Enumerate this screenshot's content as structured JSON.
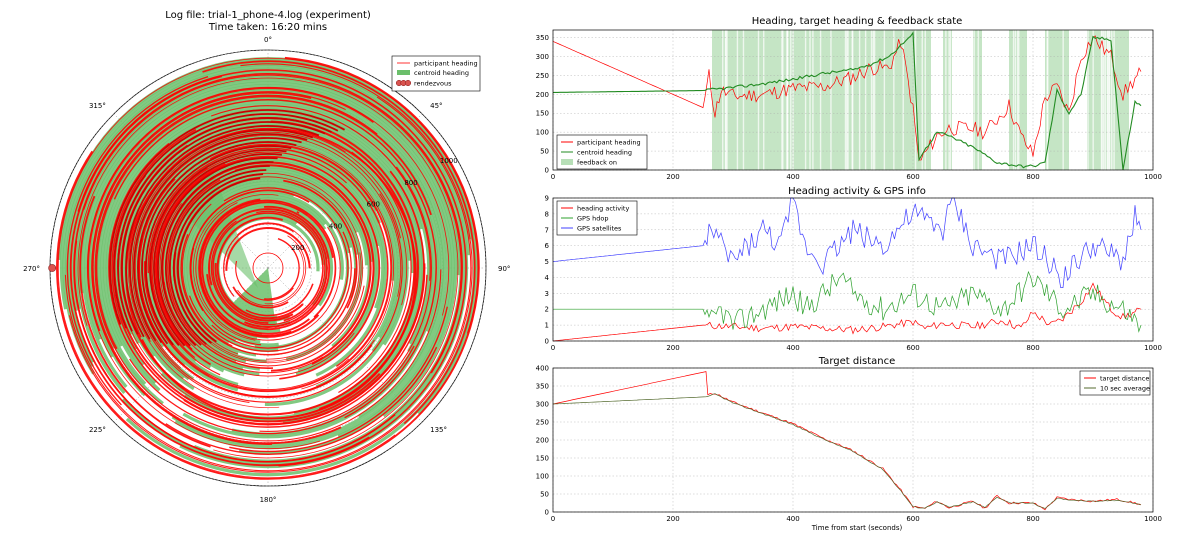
{
  "polar": {
    "title_line1": "Log file: trial-1_phone-4.log (experiment)",
    "title_line2": "Time taken: 16:20 mins",
    "angle_labels": [
      "0°",
      "45°",
      "90°",
      "135°",
      "180°",
      "225°",
      "270°",
      "315°"
    ],
    "radial_labels": [
      "200",
      "400",
      "600",
      "800",
      "1000"
    ],
    "legend": [
      "participant heading",
      "centroid heading",
      "rendezvous"
    ],
    "colors": {
      "participant": "#ff0000",
      "centroid": "#6bbf6b",
      "rendezvous": "#d9534f"
    }
  },
  "panel1": {
    "title": "Heading, target heading & feedback state",
    "y_ticks": [
      "0",
      "50",
      "100",
      "150",
      "200",
      "250",
      "300",
      "350"
    ],
    "x_ticks": [
      "0",
      "200",
      "400",
      "600",
      "800",
      "1000"
    ],
    "legend": [
      "participant heading",
      "centroid heading",
      "feedback on"
    ]
  },
  "panel2": {
    "title": "Heading activity & GPS info",
    "y_ticks": [
      "0",
      "1",
      "2",
      "3",
      "4",
      "5",
      "6",
      "7",
      "8",
      "9"
    ],
    "x_ticks": [
      "0",
      "200",
      "400",
      "600",
      "800",
      "1000"
    ],
    "legend": [
      "heading activity",
      "GPS hdop",
      "GPS satellites"
    ]
  },
  "panel3": {
    "title": "Target distance",
    "y_ticks": [
      "0",
      "50",
      "100",
      "150",
      "200",
      "250",
      "300",
      "350",
      "400"
    ],
    "x_ticks": [
      "0",
      "200",
      "400",
      "600",
      "800",
      "1000"
    ],
    "xlabel": "Time from start (seconds)",
    "legend": [
      "target distance",
      "10 sec average"
    ]
  },
  "chart_data": [
    {
      "type": "line",
      "title": "Log file: trial-1_phone-4.log (experiment) / Time taken: 16:20 mins",
      "coords": "polar",
      "theta_labels_deg": [
        0,
        45,
        90,
        135,
        180,
        225,
        270,
        315
      ],
      "r_ticks": [
        200,
        400,
        600,
        800,
        1000
      ],
      "r_range": [
        0,
        1000
      ],
      "series": [
        {
          "name": "participant heading",
          "color": "#ff0000"
        },
        {
          "name": "centroid heading",
          "color": "#6bbf6b"
        },
        {
          "name": "rendezvous",
          "color": "#d9534f",
          "points": [
            {
              "theta_deg": 270,
              "r": 990
            }
          ]
        }
      ]
    },
    {
      "type": "line",
      "title": "Heading, target heading & feedback state",
      "xlim": [
        0,
        1000
      ],
      "ylim": [
        0,
        370
      ],
      "series": [
        {
          "name": "participant heading",
          "color": "#ff0000",
          "points": [
            [
              0,
              340
            ],
            [
              250,
              165
            ],
            [
              260,
              250
            ],
            [
              270,
              150
            ],
            [
              280,
              210
            ],
            [
              300,
              195
            ],
            [
              350,
              200
            ],
            [
              400,
              215
            ],
            [
              450,
              220
            ],
            [
              500,
              245
            ],
            [
              530,
              270
            ],
            [
              560,
              270
            ],
            [
              580,
              340
            ],
            [
              600,
              160
            ],
            [
              610,
              20
            ],
            [
              640,
              90
            ],
            [
              660,
              110
            ],
            [
              700,
              110
            ],
            [
              720,
              100
            ],
            [
              760,
              170
            ],
            [
              780,
              90
            ],
            [
              800,
              40
            ],
            [
              820,
              190
            ],
            [
              840,
              220
            ],
            [
              860,
              150
            ],
            [
              880,
              300
            ],
            [
              900,
              350
            ],
            [
              930,
              300
            ],
            [
              950,
              200
            ],
            [
              970,
              240
            ],
            [
              980,
              260
            ]
          ]
        },
        {
          "name": "centroid heading",
          "color": "#228b22",
          "points": [
            [
              0,
              205
            ],
            [
              250,
              210
            ],
            [
              300,
              218
            ],
            [
              350,
              228
            ],
            [
              400,
              240
            ],
            [
              450,
              255
            ],
            [
              500,
              265
            ],
            [
              530,
              280
            ],
            [
              560,
              300
            ],
            [
              580,
              330
            ],
            [
              600,
              360
            ],
            [
              610,
              30
            ],
            [
              640,
              100
            ],
            [
              660,
              90
            ],
            [
              700,
              60
            ],
            [
              740,
              20
            ],
            [
              780,
              10
            ],
            [
              800,
              10
            ],
            [
              820,
              20
            ],
            [
              840,
              210
            ],
            [
              860,
              150
            ],
            [
              880,
              200
            ],
            [
              900,
              350
            ],
            [
              930,
              345
            ],
            [
              950,
              0
            ],
            [
              970,
              180
            ],
            [
              980,
              170
            ]
          ]
        },
        {
          "name": "feedback on",
          "color": "#b7dfb7",
          "spans": [
            [
              265,
              630
            ],
            [
              650,
              665
            ],
            [
              700,
              715
            ],
            [
              760,
              790
            ],
            [
              820,
              860
            ],
            [
              890,
              960
            ]
          ]
        }
      ]
    },
    {
      "type": "line",
      "title": "Heading activity & GPS info",
      "xlim": [
        0,
        1000
      ],
      "ylim": [
        0,
        9
      ],
      "series": [
        {
          "name": "heading activity",
          "color": "#ff0000",
          "points": [
            [
              0,
              0
            ],
            [
              250,
              1
            ],
            [
              300,
              0.9
            ],
            [
              350,
              0.8
            ],
            [
              400,
              0.9
            ],
            [
              450,
              0.8
            ],
            [
              500,
              0.7
            ],
            [
              550,
              0.9
            ],
            [
              600,
              1.2
            ],
            [
              620,
              0.8
            ],
            [
              650,
              1.1
            ],
            [
              700,
              0.9
            ],
            [
              750,
              1.3
            ],
            [
              780,
              0.8
            ],
            [
              800,
              1.8
            ],
            [
              830,
              1.0
            ],
            [
              850,
              1.4
            ],
            [
              880,
              2.5
            ],
            [
              900,
              3.5
            ],
            [
              930,
              2.0
            ],
            [
              950,
              1.5
            ],
            [
              970,
              1.8
            ],
            [
              980,
              2.0
            ]
          ]
        },
        {
          "name": "GPS hdop",
          "color": "#2ca02c",
          "points": [
            [
              0,
              2
            ],
            [
              250,
              2
            ],
            [
              260,
              1
            ],
            [
              280,
              2
            ],
            [
              300,
              1
            ],
            [
              350,
              2
            ],
            [
              400,
              3
            ],
            [
              420,
              2
            ],
            [
              450,
              3
            ],
            [
              480,
              4
            ],
            [
              500,
              3
            ],
            [
              550,
              2
            ],
            [
              600,
              3
            ],
            [
              650,
              2
            ],
            [
              700,
              3
            ],
            [
              750,
              2
            ],
            [
              800,
              4
            ],
            [
              850,
              2
            ],
            [
              900,
              3
            ],
            [
              950,
              2
            ],
            [
              980,
              1
            ]
          ]
        },
        {
          "name": "GPS satellites",
          "color": "#4040ff",
          "points": [
            [
              0,
              5
            ],
            [
              250,
              6
            ],
            [
              260,
              7
            ],
            [
              280,
              6
            ],
            [
              300,
              5
            ],
            [
              350,
              7
            ],
            [
              380,
              6
            ],
            [
              400,
              9
            ],
            [
              420,
              6
            ],
            [
              450,
              5
            ],
            [
              500,
              7
            ],
            [
              550,
              6
            ],
            [
              600,
              8
            ],
            [
              650,
              7
            ],
            [
              665,
              9
            ],
            [
              700,
              6
            ],
            [
              750,
              5
            ],
            [
              800,
              6
            ],
            [
              850,
              4
            ],
            [
              900,
              6
            ],
            [
              950,
              5
            ],
            [
              970,
              8
            ],
            [
              980,
              7
            ]
          ]
        }
      ]
    },
    {
      "type": "line",
      "title": "Target distance",
      "xlabel": "Time from start (seconds)",
      "xlim": [
        0,
        1000
      ],
      "ylim": [
        0,
        400
      ],
      "series": [
        {
          "name": "target distance",
          "color": "#ff0000",
          "points": [
            [
              0,
              300
            ],
            [
              255,
              390
            ],
            [
              258,
              325
            ],
            [
              270,
              330
            ],
            [
              300,
              305
            ],
            [
              350,
              275
            ],
            [
              400,
              245
            ],
            [
              450,
              205
            ],
            [
              500,
              170
            ],
            [
              550,
              120
            ],
            [
              580,
              60
            ],
            [
              600,
              15
            ],
            [
              620,
              10
            ],
            [
              640,
              30
            ],
            [
              660,
              12
            ],
            [
              700,
              30
            ],
            [
              720,
              10
            ],
            [
              740,
              45
            ],
            [
              760,
              25
            ],
            [
              800,
              25
            ],
            [
              820,
              8
            ],
            [
              840,
              40
            ],
            [
              860,
              35
            ],
            [
              900,
              30
            ],
            [
              940,
              35
            ],
            [
              970,
              25
            ],
            [
              980,
              20
            ]
          ]
        },
        {
          "name": "10 sec average",
          "color": "#556b2f",
          "points": [
            [
              0,
              300
            ],
            [
              255,
              320
            ],
            [
              258,
              320
            ],
            [
              270,
              328
            ],
            [
              300,
              303
            ],
            [
              350,
              273
            ],
            [
              400,
              243
            ],
            [
              450,
              203
            ],
            [
              500,
              168
            ],
            [
              550,
              118
            ],
            [
              580,
              58
            ],
            [
              600,
              14
            ],
            [
              620,
              11
            ],
            [
              640,
              28
            ],
            [
              660,
              13
            ],
            [
              700,
              28
            ],
            [
              720,
              12
            ],
            [
              740,
              42
            ],
            [
              760,
              26
            ],
            [
              800,
              24
            ],
            [
              820,
              9
            ],
            [
              840,
              38
            ],
            [
              860,
              34
            ],
            [
              900,
              29
            ],
            [
              940,
              33
            ],
            [
              970,
              24
            ],
            [
              980,
              20
            ]
          ]
        }
      ]
    }
  ]
}
